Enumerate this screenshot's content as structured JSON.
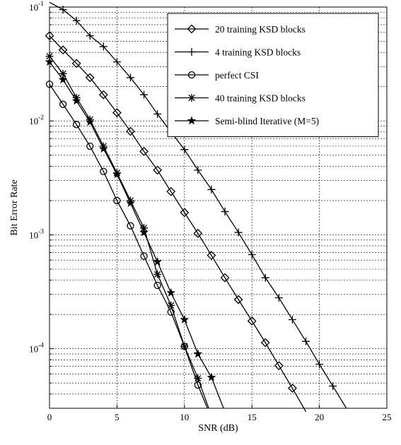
{
  "chart_data": {
    "type": "line",
    "title": "",
    "xlabel": "SNR (dB)",
    "ylabel": "Bit Error Rate",
    "xlim": [
      0,
      25
    ],
    "ylim": [
      3e-05,
      0.1
    ],
    "y_scale": "log",
    "grid": true,
    "legend_position": "top-right",
    "x_ticks": [
      0,
      5,
      10,
      15,
      20,
      25
    ],
    "y_ticks": [
      {
        "value": 0.1,
        "base": "10",
        "exp": "-1"
      },
      {
        "value": 0.01,
        "base": "10",
        "exp": "-2"
      },
      {
        "value": 0.001,
        "base": "10",
        "exp": "-3"
      },
      {
        "value": 0.0001,
        "base": "10",
        "exp": "-4"
      }
    ],
    "series": [
      {
        "name": "20 training KSD blocks",
        "marker": "diamond",
        "x": [
          0,
          1,
          2,
          3,
          4,
          5,
          6,
          7,
          8,
          9,
          10,
          11,
          12,
          13,
          14,
          15,
          16,
          17,
          18,
          19
        ],
        "y": [
          0.056,
          0.042,
          0.032,
          0.024,
          0.017,
          0.0118,
          0.0081,
          0.0054,
          0.0037,
          0.0024,
          0.00157,
          0.00103,
          0.00066,
          0.00042,
          0.00027,
          0.000175,
          0.000113,
          7.1e-05,
          4.5e-05,
          2.8e-05
        ]
      },
      {
        "name": "4 training KSD blocks",
        "marker": "plus",
        "x": [
          0,
          1,
          2,
          3,
          4,
          5,
          6,
          7,
          8,
          9,
          10,
          11,
          12,
          13,
          14,
          15,
          16,
          17,
          18,
          19,
          20,
          21,
          22
        ],
        "y": [
          0.11,
          0.095,
          0.076,
          0.056,
          0.045,
          0.033,
          0.024,
          0.017,
          0.0115,
          0.008,
          0.0056,
          0.0037,
          0.0025,
          0.0016,
          0.00105,
          0.00067,
          0.00042,
          0.00028,
          0.00018,
          0.000116,
          7.3e-05,
          4.7e-05,
          3e-05
        ]
      },
      {
        "name": "perfect CSI",
        "marker": "circle",
        "x": [
          0,
          1,
          2,
          3,
          4,
          5,
          6,
          7,
          8,
          9,
          10,
          11,
          11.7
        ],
        "y": [
          0.021,
          0.014,
          0.0093,
          0.006,
          0.0036,
          0.002,
          0.0012,
          0.00065,
          0.00036,
          0.00021,
          0.000105,
          4.8e-05,
          3e-05
        ]
      },
      {
        "name": "40 training KSD blocks",
        "marker": "asterisk",
        "x": [
          0,
          1,
          2,
          3,
          4,
          5,
          6,
          7,
          8,
          9,
          10,
          11,
          11.8
        ],
        "y": [
          0.037,
          0.026,
          0.016,
          0.0103,
          0.006,
          0.0035,
          0.002,
          0.00115,
          0.00045,
          0.00024,
          0.000105,
          5.5e-05,
          3e-05
        ]
      },
      {
        "name": "Semi-blind Iterative (M=5)",
        "marker": "star",
        "x": [
          0,
          1,
          2,
          3,
          4,
          5,
          6,
          7,
          8,
          9,
          10,
          11,
          12,
          12.9
        ],
        "y": [
          0.033,
          0.023,
          0.015,
          0.0098,
          0.0057,
          0.0034,
          0.0019,
          0.00105,
          0.00058,
          0.00031,
          0.00018,
          9e-05,
          5.6e-05,
          3e-05
        ]
      }
    ]
  }
}
